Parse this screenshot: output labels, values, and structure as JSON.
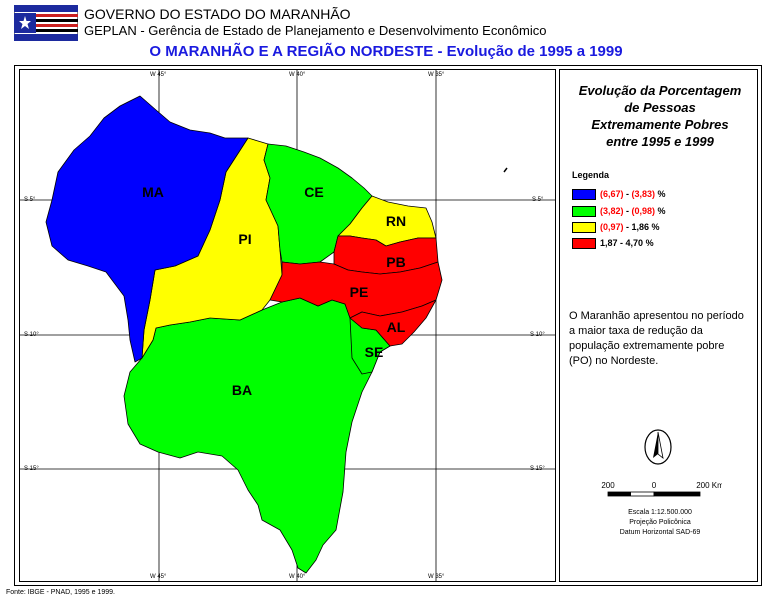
{
  "header": {
    "line1": "GOVERNO DO ESTADO DO MARANHÃO",
    "line2": "GEPLAN - Gerência de Estado de Planejamento e Desenvolvimento Econômico"
  },
  "main_title": "O MARANHÃO E A REGIÃO NORDESTE - Evolução de 1995 a 1999",
  "map": {
    "grid_labels": {
      "top": [
        "W 45°",
        "W 40°",
        "W 35°"
      ],
      "bottom": [
        "W 45°",
        "W 40°",
        "W 35°"
      ],
      "left": [
        "S 5°",
        "S 10°",
        "S 15°"
      ],
      "right": [
        "S 5°",
        "S 10°",
        "S 15°"
      ]
    },
    "states": [
      {
        "abbr": "MA",
        "color": "#0000ff",
        "class": "(6,67) - (3,83) %"
      },
      {
        "abbr": "PI",
        "color": "#ffff00",
        "class": "(0,97) - 1,86 %"
      },
      {
        "abbr": "CE",
        "color": "#00ff00",
        "class": "(3,82) - (0,98) %"
      },
      {
        "abbr": "RN",
        "color": "#ffff00",
        "class": "(0,97) - 1,86 %"
      },
      {
        "abbr": "PB",
        "color": "#ff0000",
        "class": "1,87 - 4,70 %"
      },
      {
        "abbr": "PE",
        "color": "#ff0000",
        "class": "1,87 - 4,70 %"
      },
      {
        "abbr": "AL",
        "color": "#ff0000",
        "class": "1,87 - 4,70 %"
      },
      {
        "abbr": "SE",
        "color": "#00ff00",
        "class": "(3,82) - (0,98) %"
      },
      {
        "abbr": "BA",
        "color": "#00ff00",
        "class": "(3,82) - (0,98) %"
      }
    ]
  },
  "legend": {
    "title_lines": [
      "Evolução da Porcentagem",
      "de Pessoas",
      "Extremamente Pobres",
      "entre 1995 e 1999"
    ],
    "heading": "Legenda",
    "items": [
      {
        "color": "#0000ff",
        "low": "(6,67)",
        "sep": " - ",
        "high": "(3,83)",
        "unit": " %"
      },
      {
        "color": "#00ff00",
        "low": "(3,82)",
        "sep": " - ",
        "high": "(0,98)",
        "unit": " %"
      },
      {
        "color": "#ffff00",
        "low": "(0,97)",
        "sep": " - ",
        "high": "1,86",
        "unit": " %"
      },
      {
        "color": "#ff0000",
        "low": "1,87",
        "sep": " - ",
        "high": "4,70",
        "unit": " %"
      }
    ]
  },
  "note": "O Maranhão apresentou no período a maior taxa de redução da população extremamente pobre (PO) no Nordeste.",
  "scale": {
    "labels": [
      "200",
      "0",
      "200 Km"
    ],
    "text": [
      "Escala 1:12.500.000",
      "Projeção Policônica",
      "Datum Horizontal SAD-69"
    ]
  },
  "source": "Fonte: IBGE - PNAD, 1995 e 1999."
}
